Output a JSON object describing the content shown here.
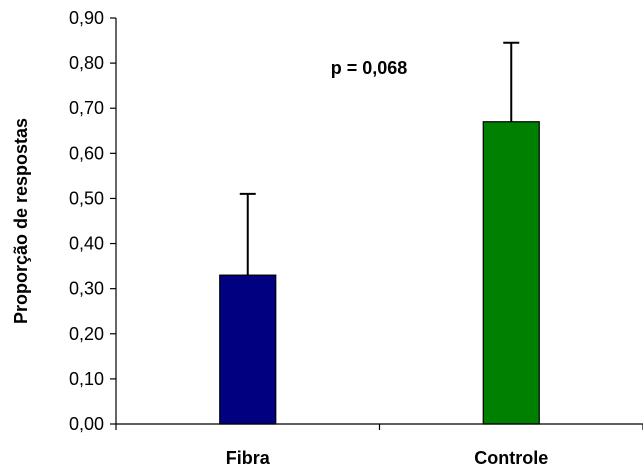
{
  "chart_data": {
    "type": "bar",
    "categories": [
      "Fibra",
      "Controle"
    ],
    "values": [
      0.33,
      0.67
    ],
    "error_upper": [
      0.18,
      0.175
    ],
    "colors": [
      "#000080",
      "#008000"
    ],
    "ylabel": "Proporção de respostas",
    "xlabel": "",
    "ylim": [
      0,
      0.9
    ],
    "yticks": [
      0.0,
      0.1,
      0.2,
      0.3,
      0.4,
      0.5,
      0.6,
      0.7,
      0.8,
      0.9
    ],
    "ytick_labels": [
      "0,00",
      "0,10",
      "0,20",
      "0,30",
      "0,40",
      "0,50",
      "0,60",
      "0,70",
      "0,80",
      "0,90"
    ],
    "annotation": "p = 0,068",
    "grid": false,
    "legend": "none"
  }
}
